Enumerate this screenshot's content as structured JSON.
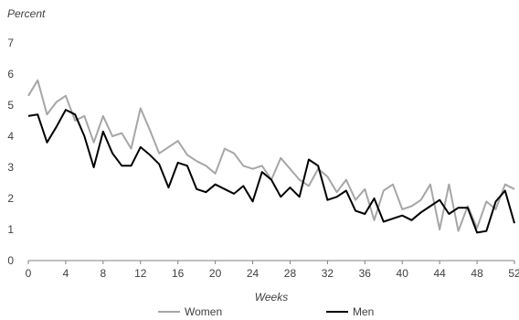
{
  "chart_data": {
    "type": "line",
    "ylabel": "Percent",
    "xlabel": "Weeks",
    "xlim": [
      0,
      52
    ],
    "ylim": [
      0,
      7
    ],
    "xticks": [
      0,
      4,
      8,
      12,
      16,
      20,
      24,
      28,
      32,
      36,
      40,
      44,
      48,
      52
    ],
    "yticks": [
      0,
      1,
      2,
      3,
      4,
      5,
      6,
      7
    ],
    "x": [
      0,
      1,
      2,
      3,
      4,
      5,
      6,
      7,
      8,
      9,
      10,
      11,
      12,
      13,
      14,
      15,
      16,
      17,
      18,
      19,
      20,
      21,
      22,
      23,
      24,
      25,
      26,
      27,
      28,
      29,
      30,
      31,
      32,
      33,
      34,
      35,
      36,
      37,
      38,
      39,
      40,
      41,
      42,
      43,
      44,
      45,
      46,
      47,
      48,
      49,
      50,
      51,
      52
    ],
    "series": [
      {
        "name": "Women",
        "color": "#a6a6a6",
        "values": [
          5.3,
          5.8,
          4.7,
          5.1,
          5.3,
          4.5,
          4.65,
          3.8,
          4.65,
          4.0,
          4.1,
          3.6,
          4.9,
          4.2,
          3.45,
          3.65,
          3.85,
          3.4,
          3.2,
          3.05,
          2.8,
          3.6,
          3.45,
          3.05,
          2.95,
          3.05,
          2.6,
          3.3,
          2.95,
          2.6,
          2.4,
          2.95,
          2.7,
          2.2,
          2.6,
          1.95,
          2.3,
          1.3,
          2.25,
          2.45,
          1.65,
          1.75,
          1.95,
          2.45,
          1.0,
          2.45,
          0.95,
          1.75,
          1.05,
          1.9,
          1.65,
          2.45,
          2.3
        ]
      },
      {
        "name": "Men",
        "color": "#000000",
        "values": [
          4.65,
          4.7,
          3.8,
          4.3,
          4.85,
          4.7,
          4.0,
          3.0,
          4.15,
          3.45,
          3.05,
          3.05,
          3.65,
          3.4,
          3.1,
          2.35,
          3.15,
          3.05,
          2.3,
          2.2,
          2.45,
          2.3,
          2.15,
          2.4,
          1.9,
          2.85,
          2.6,
          2.05,
          2.35,
          2.05,
          3.25,
          3.05,
          1.95,
          2.05,
          2.25,
          1.6,
          1.5,
          2.0,
          1.25,
          1.35,
          1.45,
          1.3,
          1.55,
          1.75,
          1.95,
          1.5,
          1.7,
          1.7,
          0.9,
          0.95,
          1.9,
          2.25,
          1.2
        ]
      }
    ],
    "legend": [
      "Women",
      "Men"
    ],
    "legend_position": "bottom",
    "grid": false
  }
}
